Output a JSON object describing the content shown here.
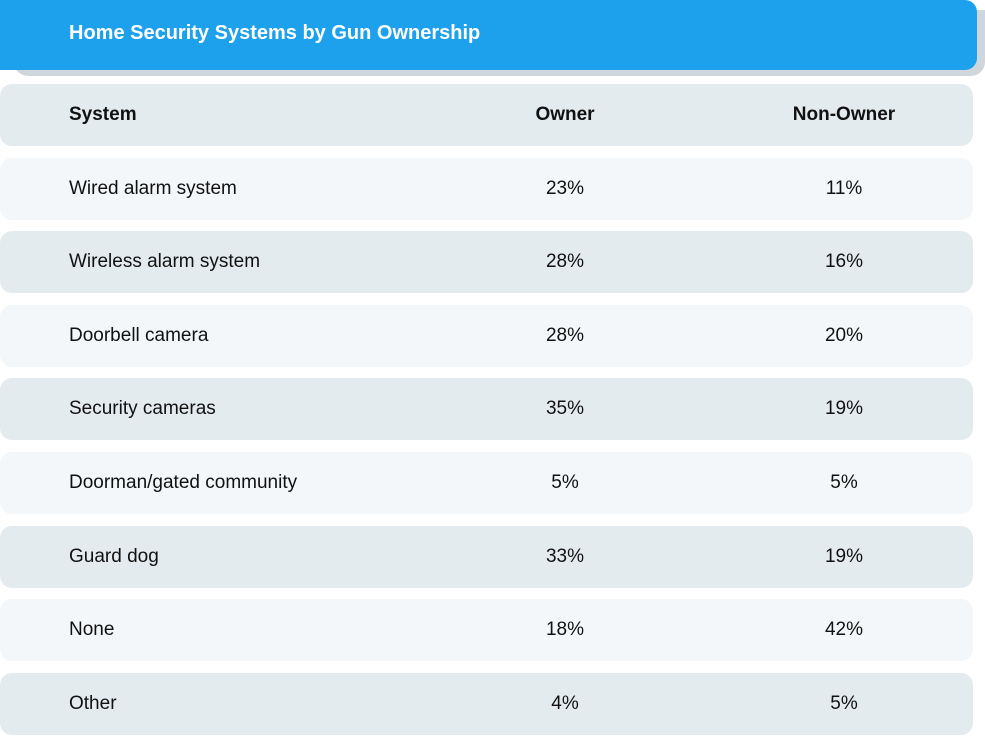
{
  "chart_data": {
    "type": "table",
    "title": "Home Security Systems by Gun Ownership",
    "columns": [
      "System",
      "Owner",
      "Non-Owner"
    ],
    "rows": [
      [
        "Wired alarm system",
        "23%",
        "11%"
      ],
      [
        "Wireless alarm system",
        "28%",
        "16%"
      ],
      [
        "Doorbell camera",
        "28%",
        "20%"
      ],
      [
        "Security cameras",
        "35%",
        "19%"
      ],
      [
        "Doorman/gated community",
        "5%",
        "5%"
      ],
      [
        "Guard dog",
        "33%",
        "19%"
      ],
      [
        "None",
        "18%",
        "42%"
      ],
      [
        "Other",
        "4%",
        "5%"
      ]
    ],
    "colors": {
      "title_bar": "#1da1ec",
      "title_text": "#ffffff",
      "row_dark": "#e4ebef",
      "row_light": "#f3f7f9"
    }
  }
}
